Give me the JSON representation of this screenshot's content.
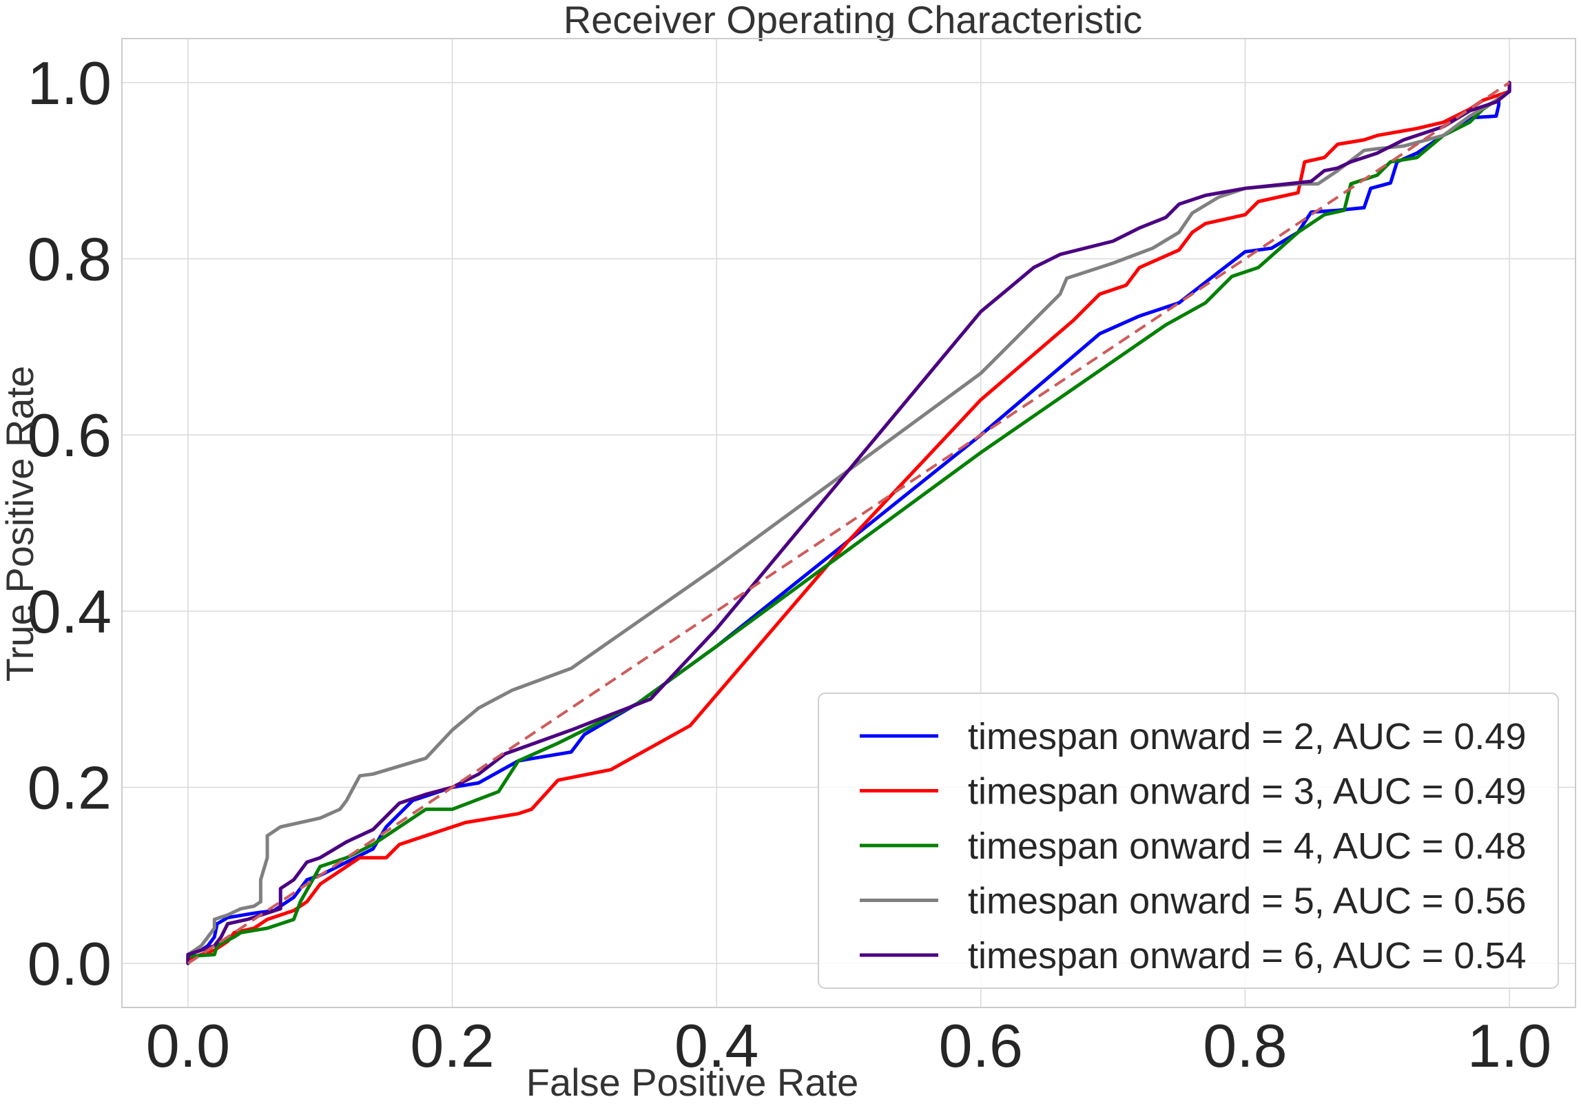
{
  "chart_data": {
    "type": "line",
    "title": "Receiver Operating Characteristic",
    "xlabel": "False Positive Rate",
    "ylabel": "True Positive Rate",
    "xlim": [
      -0.05,
      1.05
    ],
    "ylim": [
      -0.05,
      1.05
    ],
    "xticks": [
      "0.0",
      "0.2",
      "0.4",
      "0.6",
      "0.8",
      "1.0"
    ],
    "yticks": [
      "0.0",
      "0.2",
      "0.4",
      "0.6",
      "0.8",
      "1.0"
    ],
    "grid": true,
    "legend_position": "lower-right",
    "diagonal": {
      "style": "dashed",
      "color": "#cd5c5c",
      "points": [
        [
          0,
          0
        ],
        [
          1,
          1
        ]
      ]
    },
    "series": [
      {
        "name": "timespan onward = 2, AUC = 0.49",
        "color": "#0000ff",
        "points": [
          [
            0,
            0
          ],
          [
            0,
            0.01
          ],
          [
            0.01,
            0.015
          ],
          [
            0.015,
            0.02
          ],
          [
            0.02,
            0.03
          ],
          [
            0.022,
            0.045
          ],
          [
            0.03,
            0.052
          ],
          [
            0.05,
            0.057
          ],
          [
            0.065,
            0.06
          ],
          [
            0.08,
            0.075
          ],
          [
            0.09,
            0.095
          ],
          [
            0.1,
            0.1
          ],
          [
            0.12,
            0.115
          ],
          [
            0.14,
            0.13
          ],
          [
            0.15,
            0.155
          ],
          [
            0.17,
            0.185
          ],
          [
            0.2,
            0.2
          ],
          [
            0.22,
            0.205
          ],
          [
            0.25,
            0.23
          ],
          [
            0.29,
            0.24
          ],
          [
            0.3,
            0.26
          ],
          [
            0.34,
            0.295
          ],
          [
            0.4,
            0.36
          ],
          [
            0.5,
            0.48
          ],
          [
            0.6,
            0.6
          ],
          [
            0.69,
            0.715
          ],
          [
            0.72,
            0.735
          ],
          [
            0.75,
            0.75
          ],
          [
            0.78,
            0.785
          ],
          [
            0.8,
            0.808
          ],
          [
            0.82,
            0.812
          ],
          [
            0.84,
            0.83
          ],
          [
            0.85,
            0.853
          ],
          [
            0.87,
            0.855
          ],
          [
            0.89,
            0.858
          ],
          [
            0.895,
            0.88
          ],
          [
            0.91,
            0.886
          ],
          [
            0.915,
            0.91
          ],
          [
            0.93,
            0.92
          ],
          [
            0.95,
            0.94
          ],
          [
            0.97,
            0.96
          ],
          [
            0.99,
            0.962
          ],
          [
            0.992,
            0.975
          ],
          [
            0.992,
            0.985
          ],
          [
            1,
            0.99
          ],
          [
            1,
            1
          ]
        ]
      },
      {
        "name": "timespan onward = 3, AUC = 0.49",
        "color": "#ff0000",
        "points": [
          [
            0,
            0
          ],
          [
            0,
            0.005
          ],
          [
            0.01,
            0.01
          ],
          [
            0.02,
            0.015
          ],
          [
            0.03,
            0.025
          ],
          [
            0.035,
            0.035
          ],
          [
            0.05,
            0.04
          ],
          [
            0.06,
            0.05
          ],
          [
            0.08,
            0.06
          ],
          [
            0.09,
            0.07
          ],
          [
            0.1,
            0.09
          ],
          [
            0.11,
            0.1
          ],
          [
            0.12,
            0.11
          ],
          [
            0.13,
            0.12
          ],
          [
            0.15,
            0.12
          ],
          [
            0.16,
            0.135
          ],
          [
            0.2,
            0.155
          ],
          [
            0.21,
            0.16
          ],
          [
            0.25,
            0.17
          ],
          [
            0.26,
            0.175
          ],
          [
            0.28,
            0.208
          ],
          [
            0.32,
            0.22
          ],
          [
            0.38,
            0.27
          ],
          [
            0.5,
            0.48
          ],
          [
            0.6,
            0.64
          ],
          [
            0.67,
            0.73
          ],
          [
            0.69,
            0.76
          ],
          [
            0.71,
            0.77
          ],
          [
            0.72,
            0.79
          ],
          [
            0.75,
            0.81
          ],
          [
            0.76,
            0.83
          ],
          [
            0.77,
            0.84
          ],
          [
            0.8,
            0.85
          ],
          [
            0.81,
            0.865
          ],
          [
            0.84,
            0.875
          ],
          [
            0.845,
            0.91
          ],
          [
            0.86,
            0.915
          ],
          [
            0.87,
            0.93
          ],
          [
            0.89,
            0.935
          ],
          [
            0.9,
            0.94
          ],
          [
            0.93,
            0.948
          ],
          [
            0.95,
            0.955
          ],
          [
            0.97,
            0.97
          ],
          [
            0.98,
            0.98
          ],
          [
            1,
            0.99
          ],
          [
            1,
            1
          ]
        ]
      },
      {
        "name": "timespan onward = 4, AUC = 0.48",
        "color": "#008000",
        "points": [
          [
            0,
            0
          ],
          [
            0,
            0.008
          ],
          [
            0.02,
            0.01
          ],
          [
            0.022,
            0.02
          ],
          [
            0.035,
            0.03
          ],
          [
            0.04,
            0.035
          ],
          [
            0.06,
            0.04
          ],
          [
            0.08,
            0.05
          ],
          [
            0.085,
            0.07
          ],
          [
            0.1,
            0.11
          ],
          [
            0.12,
            0.12
          ],
          [
            0.14,
            0.135
          ],
          [
            0.18,
            0.175
          ],
          [
            0.2,
            0.175
          ],
          [
            0.235,
            0.195
          ],
          [
            0.25,
            0.23
          ],
          [
            0.28,
            0.25
          ],
          [
            0.34,
            0.295
          ],
          [
            0.4,
            0.36
          ],
          [
            0.5,
            0.47
          ],
          [
            0.6,
            0.58
          ],
          [
            0.74,
            0.725
          ],
          [
            0.77,
            0.75
          ],
          [
            0.79,
            0.78
          ],
          [
            0.81,
            0.79
          ],
          [
            0.84,
            0.83
          ],
          [
            0.86,
            0.85
          ],
          [
            0.875,
            0.855
          ],
          [
            0.88,
            0.885
          ],
          [
            0.9,
            0.895
          ],
          [
            0.91,
            0.91
          ],
          [
            0.93,
            0.915
          ],
          [
            0.95,
            0.94
          ],
          [
            0.97,
            0.955
          ],
          [
            0.98,
            0.97
          ],
          [
            1,
            0.99
          ],
          [
            1,
            1
          ]
        ]
      },
      {
        "name": "timespan onward = 5, AUC = 0.56",
        "color": "#808080",
        "points": [
          [
            0,
            0
          ],
          [
            0,
            0.01
          ],
          [
            0.01,
            0.02
          ],
          [
            0.02,
            0.04
          ],
          [
            0.02,
            0.05
          ],
          [
            0.03,
            0.055
          ],
          [
            0.04,
            0.062
          ],
          [
            0.05,
            0.065
          ],
          [
            0.055,
            0.07
          ],
          [
            0.055,
            0.095
          ],
          [
            0.06,
            0.12
          ],
          [
            0.06,
            0.145
          ],
          [
            0.07,
            0.155
          ],
          [
            0.1,
            0.165
          ],
          [
            0.115,
            0.175
          ],
          [
            0.12,
            0.185
          ],
          [
            0.13,
            0.213
          ],
          [
            0.14,
            0.215
          ],
          [
            0.18,
            0.233
          ],
          [
            0.2,
            0.265
          ],
          [
            0.22,
            0.29
          ],
          [
            0.245,
            0.31
          ],
          [
            0.29,
            0.335
          ],
          [
            0.4,
            0.45
          ],
          [
            0.5,
            0.56
          ],
          [
            0.6,
            0.67
          ],
          [
            0.66,
            0.76
          ],
          [
            0.665,
            0.778
          ],
          [
            0.7,
            0.795
          ],
          [
            0.73,
            0.812
          ],
          [
            0.75,
            0.83
          ],
          [
            0.76,
            0.852
          ],
          [
            0.78,
            0.87
          ],
          [
            0.8,
            0.88
          ],
          [
            0.84,
            0.885
          ],
          [
            0.855,
            0.885
          ],
          [
            0.87,
            0.9
          ],
          [
            0.89,
            0.923
          ],
          [
            0.9,
            0.925
          ],
          [
            0.92,
            0.928
          ],
          [
            0.95,
            0.94
          ],
          [
            0.97,
            0.962
          ],
          [
            0.99,
            0.98
          ],
          [
            1,
            0.99
          ],
          [
            1,
            1
          ]
        ]
      },
      {
        "name": "timespan onward = 6, AUC = 0.54",
        "color": "#4b0082",
        "points": [
          [
            0,
            0
          ],
          [
            0,
            0.01
          ],
          [
            0.01,
            0.015
          ],
          [
            0.02,
            0.02
          ],
          [
            0.025,
            0.03
          ],
          [
            0.03,
            0.045
          ],
          [
            0.045,
            0.05
          ],
          [
            0.07,
            0.062
          ],
          [
            0.07,
            0.085
          ],
          [
            0.08,
            0.095
          ],
          [
            0.085,
            0.105
          ],
          [
            0.09,
            0.115
          ],
          [
            0.1,
            0.12
          ],
          [
            0.12,
            0.138
          ],
          [
            0.14,
            0.152
          ],
          [
            0.16,
            0.182
          ],
          [
            0.18,
            0.192
          ],
          [
            0.2,
            0.2
          ],
          [
            0.22,
            0.215
          ],
          [
            0.24,
            0.238
          ],
          [
            0.29,
            0.265
          ],
          [
            0.35,
            0.3
          ],
          [
            0.4,
            0.38
          ],
          [
            0.5,
            0.56
          ],
          [
            0.6,
            0.74
          ],
          [
            0.62,
            0.765
          ],
          [
            0.64,
            0.79
          ],
          [
            0.66,
            0.805
          ],
          [
            0.7,
            0.82
          ],
          [
            0.72,
            0.835
          ],
          [
            0.74,
            0.847
          ],
          [
            0.75,
            0.862
          ],
          [
            0.77,
            0.872
          ],
          [
            0.8,
            0.88
          ],
          [
            0.85,
            0.888
          ],
          [
            0.86,
            0.9
          ],
          [
            0.87,
            0.903
          ],
          [
            0.88,
            0.91
          ],
          [
            0.9,
            0.92
          ],
          [
            0.92,
            0.935
          ],
          [
            0.95,
            0.95
          ],
          [
            0.97,
            0.968
          ],
          [
            0.99,
            0.978
          ],
          [
            1,
            0.99
          ],
          [
            1,
            1
          ]
        ]
      }
    ]
  }
}
